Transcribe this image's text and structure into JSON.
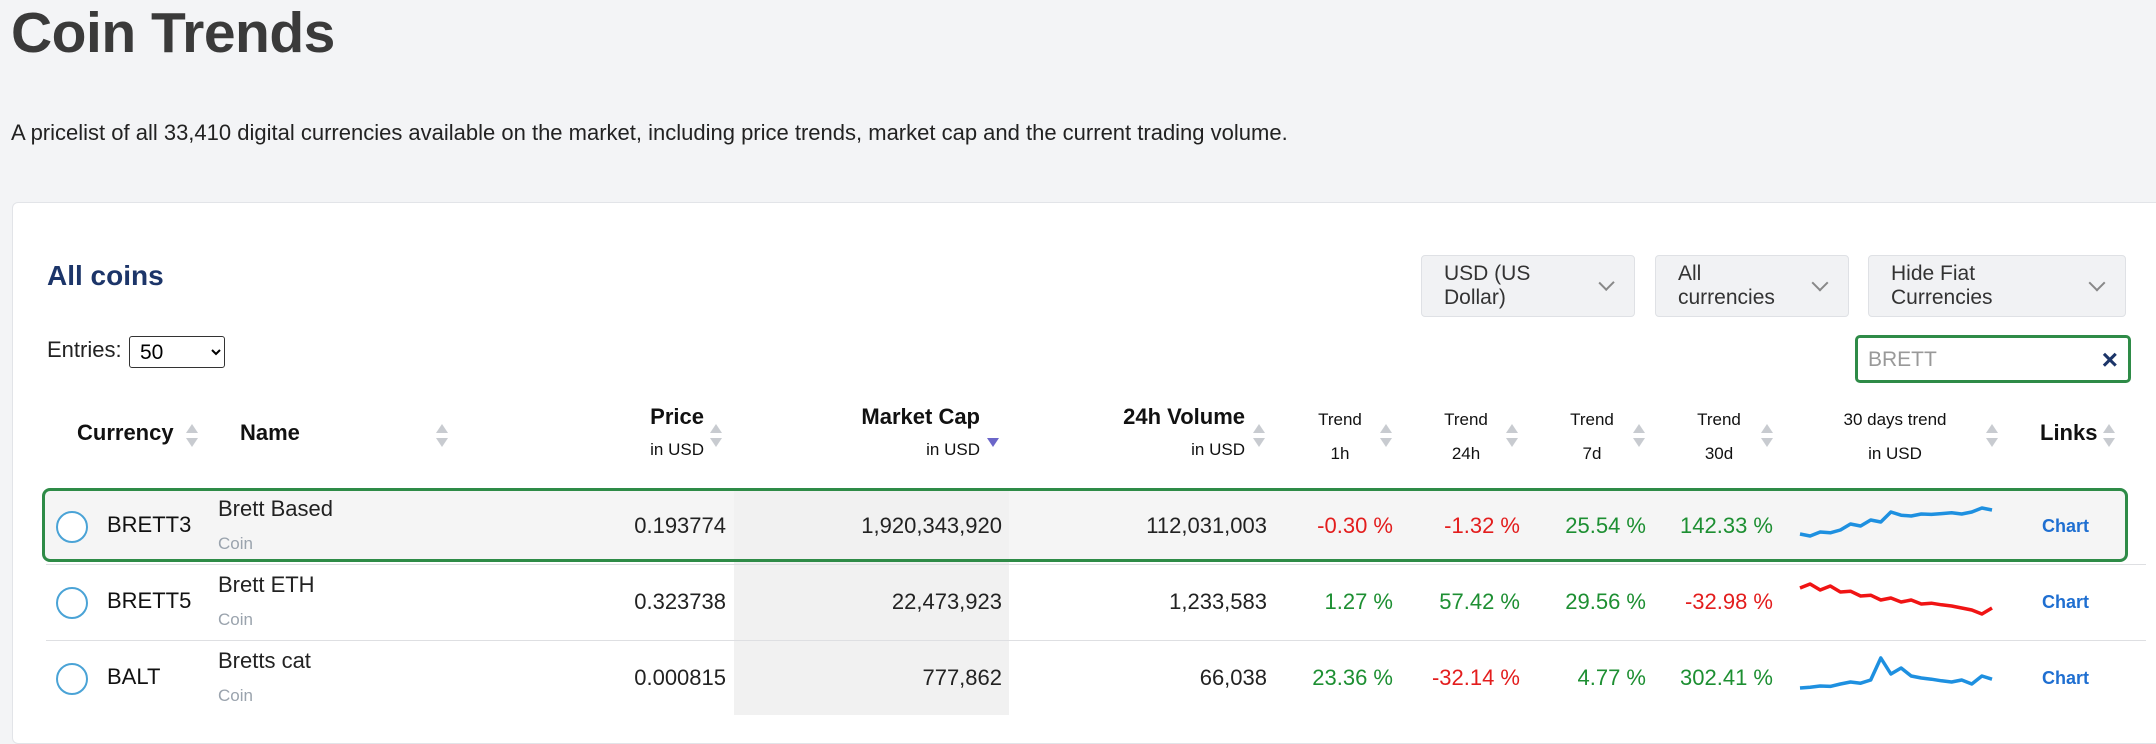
{
  "page": {
    "title": "Coin Trends",
    "description": "A pricelist of all 33,410 digital currencies available on the market, including price trends, market cap and the current trading volume."
  },
  "card": {
    "title": "All coins",
    "currency_dropdown": "USD (US Dollar)",
    "filter_dropdown": "All currencies",
    "fiat_dropdown": "Hide Fiat Currencies",
    "entries_label": "Entries:",
    "entries_value": "50",
    "search_value": "BRETT"
  },
  "columns": {
    "currency": "Currency",
    "name": "Name",
    "price": "Price",
    "price_sub": "in USD",
    "market_cap": "Market Cap",
    "market_cap_sub": "in USD",
    "volume": "24h Volume",
    "volume_sub": "in USD",
    "trend": "Trend",
    "t1h": "1h",
    "t24h": "24h",
    "t7d": "7d",
    "t30d": "30d",
    "days30": "30 days trend",
    "days30_sub": "in USD",
    "links": "Links"
  },
  "rows": [
    {
      "symbol": "BRETT3",
      "name": "Brett Based",
      "type": "Coin",
      "price": "0.193774",
      "market_cap": "1,920,343,920",
      "volume": "112,031,003",
      "t1h": "-0.30 %",
      "t24h": "-1.32 %",
      "t7d": "25.54 %",
      "t30d": "142.33 %",
      "link": "Chart",
      "spark": [
        0.25,
        0.2,
        0.3,
        0.28,
        0.35,
        0.5,
        0.45,
        0.6,
        0.55,
        0.8,
        0.72,
        0.7,
        0.75,
        0.74,
        0.76,
        0.78,
        0.75,
        0.8,
        0.9,
        0.85
      ],
      "spark_color": "#1e90e0"
    },
    {
      "symbol": "BRETT5",
      "name": "Brett ETH",
      "type": "Coin",
      "price": "0.323738",
      "market_cap": "22,473,923",
      "volume": "1,233,583",
      "t1h": "1.27 %",
      "t24h": "57.42 %",
      "t7d": "29.56 %",
      "t30d": "-32.98 %",
      "link": "Chart",
      "spark": [
        0.8,
        0.9,
        0.75,
        0.85,
        0.7,
        0.72,
        0.6,
        0.62,
        0.5,
        0.55,
        0.45,
        0.5,
        0.4,
        0.42,
        0.38,
        0.35,
        0.3,
        0.25,
        0.15,
        0.3
      ],
      "spark_color": "#f01414"
    },
    {
      "symbol": "BALT",
      "name": "Bretts cat",
      "type": "Coin",
      "price": "0.000815",
      "market_cap": "777,862",
      "volume": "66,038",
      "t1h": "23.36 %",
      "t24h": "-32.14 %",
      "t7d": "4.77 %",
      "t30d": "302.41 %",
      "link": "Chart",
      "spark": [
        0.2,
        0.22,
        0.25,
        0.24,
        0.3,
        0.35,
        0.32,
        0.4,
        0.95,
        0.55,
        0.7,
        0.5,
        0.45,
        0.42,
        0.38,
        0.35,
        0.4,
        0.3,
        0.5,
        0.42
      ],
      "spark_color": "#1e90e0"
    }
  ],
  "colors": {
    "positive": "#1d8f32",
    "negative": "#e31d1d",
    "accent": "#1c3569",
    "highlight": "#2e8b47"
  },
  "icons": [
    "sort-icon",
    "chevron-down-icon",
    "close-icon",
    "radio-icon"
  ]
}
